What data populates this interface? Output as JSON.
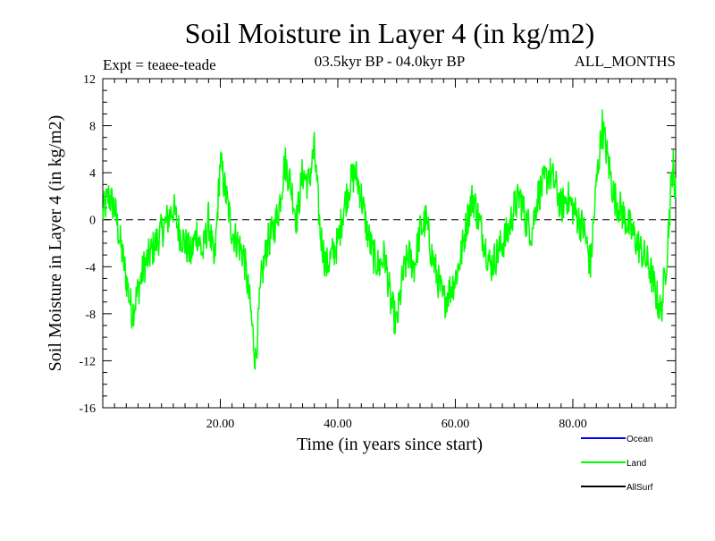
{
  "chart_data": {
    "type": "line",
    "title": "Soil Moisture in Layer 4 (in kg/m2)",
    "subtitle_left": "Expt = teaee-teade",
    "subtitle_center": "03.5kyr BP - 04.0kyr BP",
    "subtitle_right": "ALL_MONTHS",
    "xlabel": "Time (in years since start)",
    "ylabel": "Soil Moisture in Layer 4 (in kg/m2)",
    "xlim": [
      0,
      97.5
    ],
    "ylim": [
      -16,
      12
    ],
    "xticks": [
      20,
      40,
      60,
      80
    ],
    "xtick_labels": [
      "20.00",
      "40.00",
      "60.00",
      "80.00"
    ],
    "yticks": [
      -16,
      -12,
      -8,
      -4,
      0,
      4,
      8,
      12
    ],
    "ytick_labels": [
      "-16",
      "-12",
      "-8",
      "-4",
      "0",
      "4",
      "8",
      "12"
    ],
    "zero_line": true,
    "legend": [
      {
        "name": "Ocean",
        "color": "#0000ff"
      },
      {
        "name": "Land",
        "color": "#00ff00"
      },
      {
        "name": "AllSurf",
        "color": "#000000"
      }
    ],
    "series": [
      {
        "name": "Land",
        "color": "#00ff00",
        "x": [
          0,
          1,
          2,
          3,
          4,
          5,
          6,
          7,
          8,
          9,
          10,
          11,
          12,
          13,
          14,
          15,
          16,
          17,
          18,
          19,
          20,
          21,
          22,
          23,
          24,
          25,
          26,
          27,
          28,
          29,
          30,
          31,
          32,
          33,
          34,
          35,
          36,
          37,
          38,
          39,
          40,
          41,
          42,
          43,
          44,
          45,
          46,
          47,
          48,
          49,
          50,
          51,
          52,
          53,
          54,
          55,
          56,
          57,
          58,
          59,
          60,
          61,
          62,
          63,
          64,
          65,
          66,
          67,
          68,
          69,
          70,
          71,
          72,
          73,
          74,
          75,
          76,
          77,
          78,
          79,
          80,
          81,
          82,
          83,
          84,
          85,
          86,
          87,
          88,
          89,
          90,
          91,
          92,
          93,
          94,
          95,
          96,
          97,
          97.5
        ],
        "values": [
          0.5,
          2,
          1,
          -2,
          -5,
          -8,
          -6,
          -4,
          -3,
          -2,
          -1,
          0,
          1,
          -1,
          -2,
          -3,
          -1,
          -3,
          0,
          -4,
          5,
          2,
          -1,
          -2,
          -3,
          -7,
          -12,
          -5,
          -2,
          -1,
          1,
          5,
          3,
          0,
          4,
          3,
          6,
          -1,
          -4,
          -3,
          -2,
          1,
          3,
          4,
          2,
          -1,
          -3,
          -4,
          -3,
          -7,
          -9,
          -5,
          -3,
          -4,
          -1,
          0,
          -3,
          -5,
          -7,
          -6,
          -5,
          -3,
          0,
          2,
          0,
          -2,
          -4,
          -3,
          -2,
          -1,
          1,
          2,
          0,
          -1,
          2,
          3,
          4,
          3,
          1,
          2,
          1,
          0,
          -1,
          -4,
          3,
          8,
          5,
          2,
          1,
          0,
          -1,
          -2,
          -3,
          -4,
          -6,
          -8,
          -3,
          5,
          2
        ]
      }
    ]
  }
}
